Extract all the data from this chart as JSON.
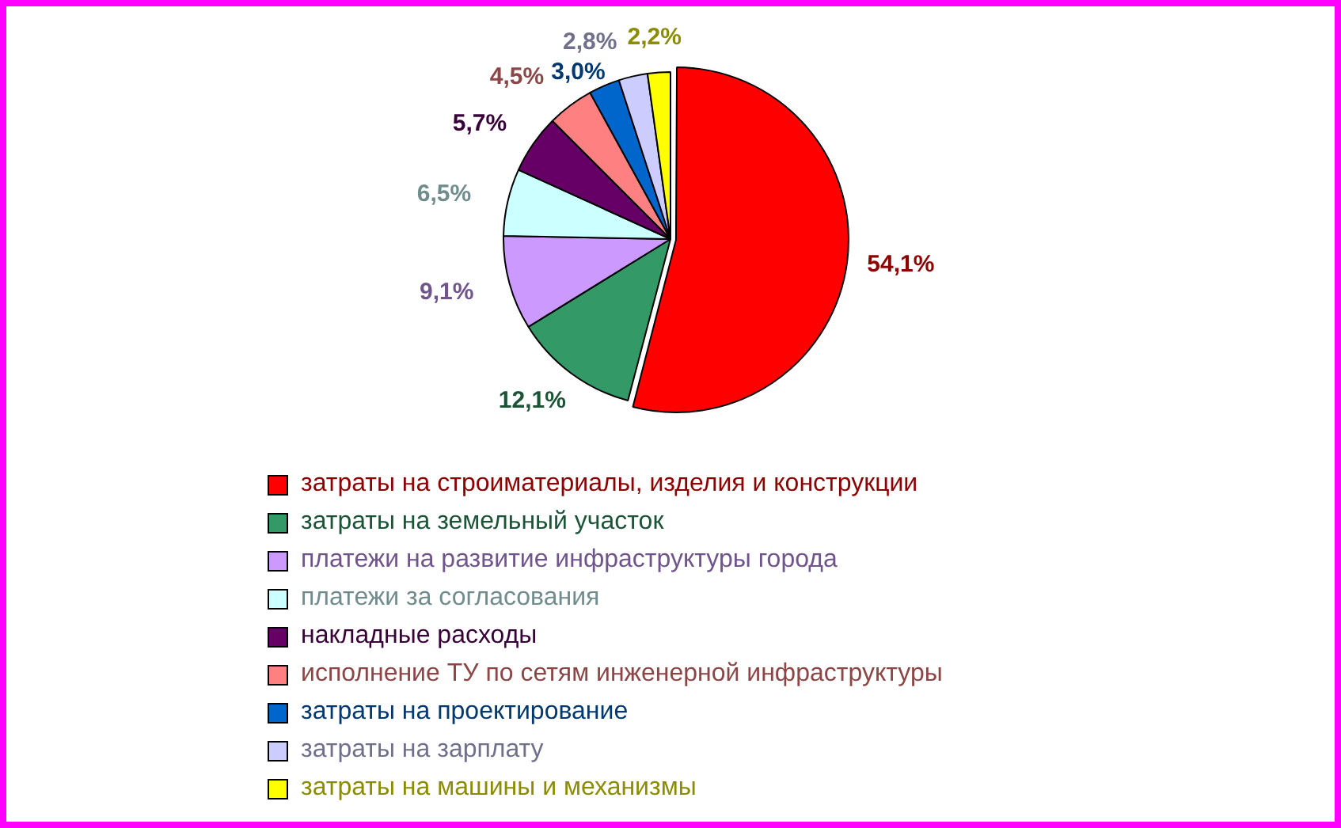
{
  "chart_data": {
    "type": "pie",
    "categories": [
      "затраты на строиматериалы, изделия и конструкции",
      "затраты на земельный участок",
      "платежи на развитие инфраструктуры города",
      "платежи за согласования",
      "накладные расходы",
      "исполнение ТУ по сетям инженерной инфраструктуры",
      "затраты на проектирование",
      "затраты на зарплату",
      "затраты на машины и механизмы"
    ],
    "values": [
      54.1,
      12.1,
      9.1,
      6.5,
      5.7,
      4.5,
      3.0,
      2.8,
      2.2
    ],
    "value_labels": [
      "54,1%",
      "12,1%",
      "9,1%",
      "6,5%",
      "5,7%",
      "4,5%",
      "3,0%",
      "2,8%",
      "2,2%"
    ],
    "colors": [
      "#ff0000",
      "#339966",
      "#cc99ff",
      "#ccffff",
      "#660066",
      "#ff8080",
      "#0066cc",
      "#ccccff",
      "#ffff00"
    ],
    "legend": "bottom"
  }
}
